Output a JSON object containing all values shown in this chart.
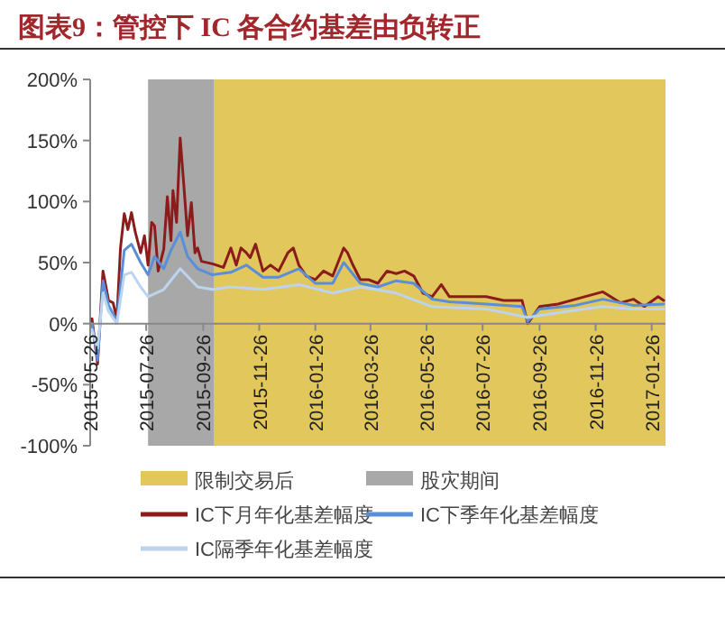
{
  "chart_data": {
    "type": "line",
    "title": "图表9：管控下 IC 各合约基差由负转正",
    "xlim": [
      "2015-05-26",
      "2017-02-10"
    ],
    "xticks": [
      "2015-05-26",
      "2015-07-26",
      "2015-09-26",
      "2015-11-26",
      "2016-01-26",
      "2016-03-26",
      "2016-05-26",
      "2016-07-26",
      "2016-09-26",
      "2016-11-26",
      "2017-01-26"
    ],
    "ylim": [
      -100,
      200
    ],
    "yticks": [
      {
        "value": -100,
        "label": "-100%"
      },
      {
        "value": -50,
        "label": "-50%"
      },
      {
        "value": 0,
        "label": "0%"
      },
      {
        "value": 50,
        "label": "50%"
      },
      {
        "value": 100,
        "label": "100%"
      },
      {
        "value": 150,
        "label": "150%"
      },
      {
        "value": 200,
        "label": "200%"
      }
    ],
    "grid": false,
    "legend": "bottom",
    "marker": "none",
    "line_style": "solid",
    "bands": [
      {
        "axis": "x",
        "from": "2015-10-08",
        "to": "2017-02-10",
        "label": "限制交易后",
        "color": "#e2c75c"
      },
      {
        "axis": "x",
        "from": "2015-07-28",
        "to": "2015-10-08",
        "label": "股灾期间",
        "color": "#a8a8a8"
      }
    ],
    "series": [
      {
        "name": "IC下月年化基差幅度",
        "color": "#8b1c1c",
        "x": [
          "2015-05-28",
          "2015-06-03",
          "2015-06-09",
          "2015-06-15",
          "2015-06-20",
          "2015-06-24",
          "2015-06-28",
          "2015-07-02",
          "2015-07-06",
          "2015-07-10",
          "2015-07-14",
          "2015-07-20",
          "2015-07-24",
          "2015-07-28",
          "2015-08-01",
          "2015-08-04",
          "2015-08-08",
          "2015-08-14",
          "2015-08-18",
          "2015-08-22",
          "2015-08-24",
          "2015-08-28",
          "2015-09-01",
          "2015-09-05",
          "2015-09-09",
          "2015-09-13",
          "2015-09-17",
          "2015-09-20",
          "2015-09-24",
          "2015-10-06",
          "2015-10-18",
          "2015-10-26",
          "2015-11-01",
          "2015-11-06",
          "2015-11-12",
          "2015-11-16",
          "2015-11-22",
          "2015-11-30",
          "2015-12-08",
          "2015-12-17",
          "2015-12-27",
          "2016-01-02",
          "2016-01-08",
          "2016-01-16",
          "2016-01-26",
          "2016-02-04",
          "2016-02-14",
          "2016-02-26",
          "2016-03-01",
          "2016-03-07",
          "2016-03-15",
          "2016-03-24",
          "2016-04-03",
          "2016-04-13",
          "2016-04-23",
          "2016-05-02",
          "2016-05-12",
          "2016-05-22",
          "2016-06-01",
          "2016-06-11",
          "2016-06-20",
          "2016-07-10",
          "2016-07-30",
          "2016-08-18",
          "2016-09-07",
          "2016-09-13",
          "2016-09-26",
          "2016-10-16",
          "2016-11-04",
          "2016-12-04",
          "2016-12-23",
          "2017-01-06",
          "2017-01-18",
          "2017-02-02",
          "2017-02-08"
        ],
        "values": [
          4,
          -33,
          43,
          19,
          17,
          4,
          62,
          90,
          77,
          91,
          75,
          58,
          72,
          48,
          83,
          80,
          43,
          61,
          104,
          68,
          109,
          83,
          152,
          112,
          72,
          99,
          58,
          62,
          51,
          49,
          46,
          62,
          48,
          62,
          58,
          54,
          65,
          43,
          48,
          43,
          58,
          62,
          48,
          39,
          36,
          43,
          39,
          62,
          58,
          48,
          36,
          36,
          33,
          43,
          41,
          43,
          39,
          25,
          22,
          32,
          22,
          22,
          22,
          19,
          19,
          0,
          14,
          16,
          20,
          26,
          17,
          20,
          14,
          22,
          19
        ]
      },
      {
        "name": "IC下季年化基差幅度",
        "color": "#5a8fd8",
        "x": [
          "2015-05-28",
          "2015-06-03",
          "2015-06-09",
          "2015-06-15",
          "2015-06-24",
          "2015-07-02",
          "2015-07-10",
          "2015-07-20",
          "2015-07-28",
          "2015-08-04",
          "2015-08-14",
          "2015-08-22",
          "2015-09-01",
          "2015-09-09",
          "2015-09-20",
          "2015-10-06",
          "2015-10-26",
          "2015-11-12",
          "2015-11-30",
          "2015-12-17",
          "2016-01-08",
          "2016-01-26",
          "2016-02-14",
          "2016-02-26",
          "2016-03-15",
          "2016-04-03",
          "2016-04-23",
          "2016-05-12",
          "2016-06-01",
          "2016-06-20",
          "2016-07-30",
          "2016-09-07",
          "2016-09-13",
          "2016-09-26",
          "2016-11-04",
          "2016-12-04",
          "2017-01-06",
          "2017-02-08"
        ],
        "values": [
          0,
          -30,
          35,
          15,
          2,
          60,
          65,
          50,
          40,
          55,
          45,
          60,
          75,
          55,
          45,
          40,
          42,
          48,
          38,
          38,
          45,
          33,
          33,
          50,
          33,
          30,
          35,
          33,
          20,
          18,
          16,
          14,
          2,
          12,
          15,
          20,
          15,
          16
        ]
      },
      {
        "name": "IC隔季年化基差幅度",
        "color": "#bcd4ee",
        "x": [
          "2015-05-28",
          "2015-06-03",
          "2015-06-09",
          "2015-06-15",
          "2015-06-24",
          "2015-07-02",
          "2015-07-10",
          "2015-07-20",
          "2015-07-28",
          "2015-08-14",
          "2015-09-01",
          "2015-09-20",
          "2015-10-06",
          "2015-10-26",
          "2015-11-30",
          "2016-01-08",
          "2016-02-14",
          "2016-03-15",
          "2016-04-23",
          "2016-06-01",
          "2016-07-30",
          "2016-09-13",
          "2016-11-04",
          "2016-12-04",
          "2017-01-06",
          "2017-02-08"
        ],
        "values": [
          -5,
          -20,
          25,
          10,
          0,
          40,
          42,
          30,
          22,
          28,
          45,
          30,
          28,
          30,
          28,
          32,
          25,
          30,
          25,
          14,
          12,
          5,
          11,
          14,
          12,
          12
        ]
      }
    ]
  }
}
